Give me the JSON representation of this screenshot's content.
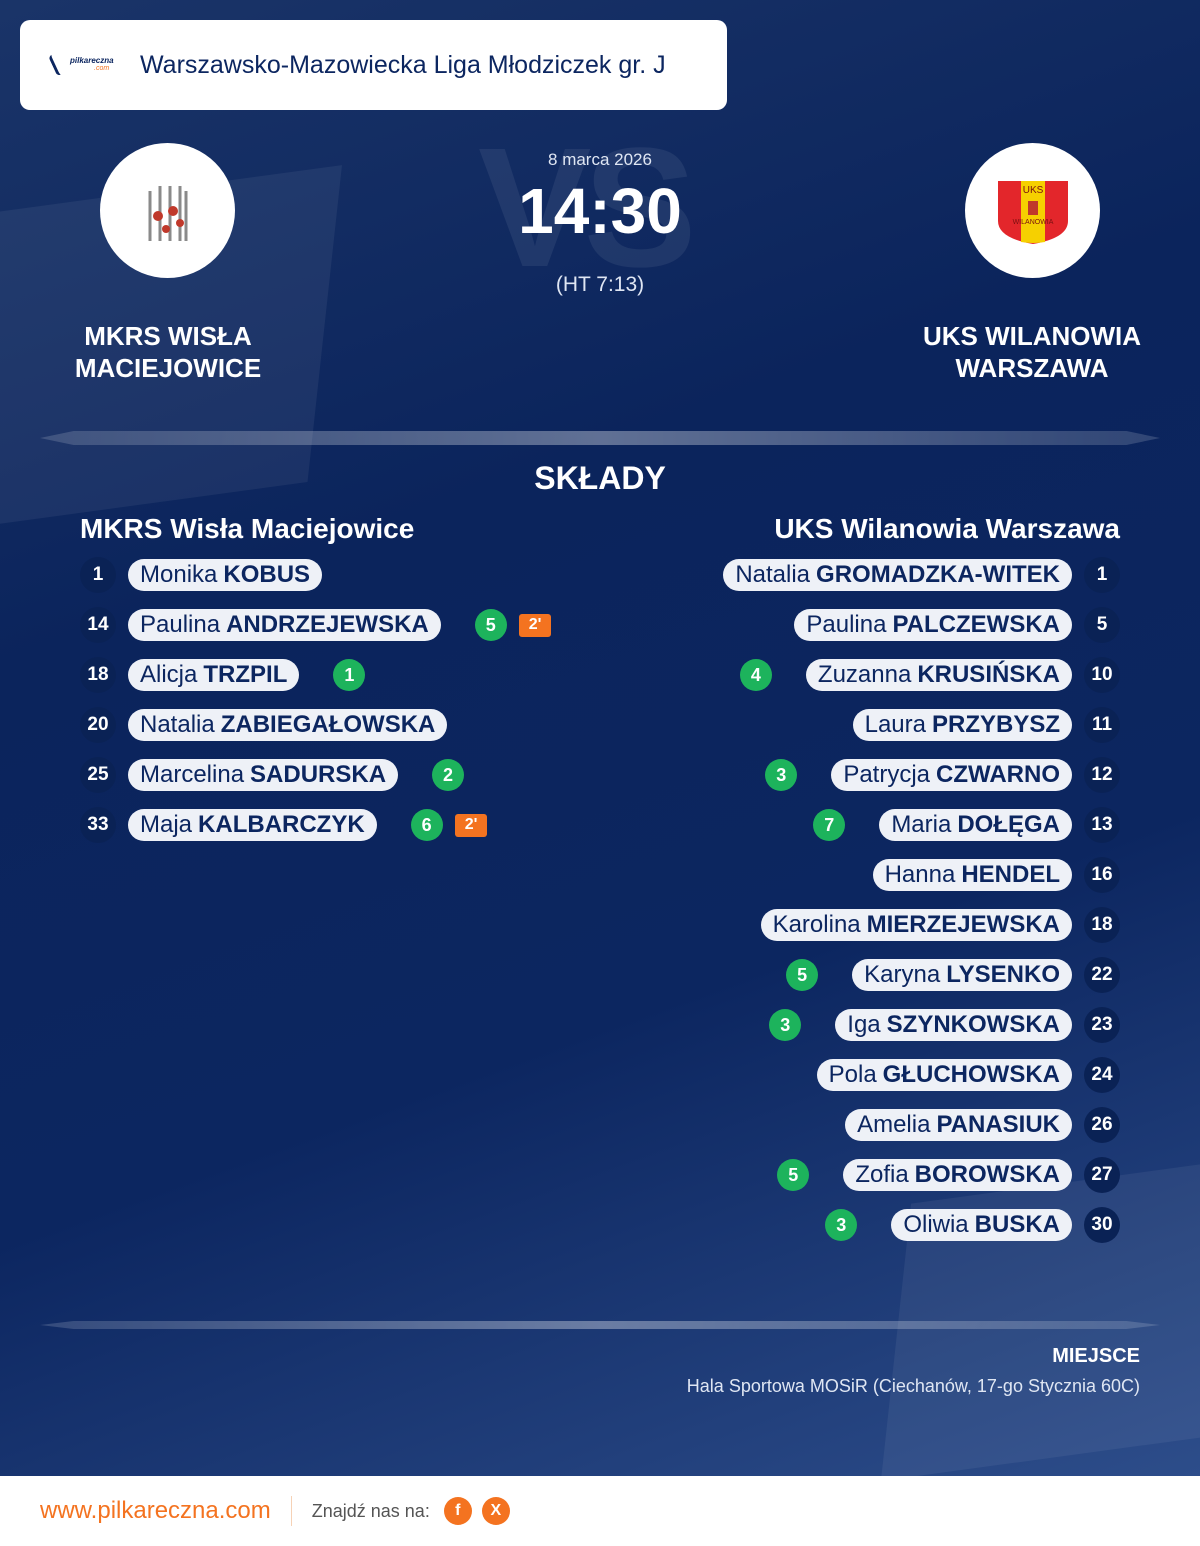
{
  "header": {
    "league": "Warszawsko-Mazowiecka Liga Młodziczek gr. J",
    "logo_text": "pilkareczna",
    "logo_sub": ".com"
  },
  "match": {
    "vs": "VS",
    "date": "8 marca 2026",
    "time": "14:30",
    "halftime": "(HT 7:13)"
  },
  "home": {
    "name_upper": "MKRS WISŁA MACIEJOWICE",
    "name": "MKRS Wisła Maciejowice",
    "players": [
      {
        "number": "1",
        "first": "Monika",
        "last": "KOBUS",
        "goals": null,
        "penalty": null
      },
      {
        "number": "14",
        "first": "Paulina",
        "last": "ANDRZEJEWSKA",
        "goals": "5",
        "penalty": "2'"
      },
      {
        "number": "18",
        "first": "Alicja",
        "last": "TRZPIL",
        "goals": "1",
        "penalty": null
      },
      {
        "number": "20",
        "first": "Natalia",
        "last": "ZABIEGAŁOWSKA",
        "goals": null,
        "penalty": null
      },
      {
        "number": "25",
        "first": "Marcelina",
        "last": "SADURSKA",
        "goals": "2",
        "penalty": null
      },
      {
        "number": "33",
        "first": "Maja",
        "last": "KALBARCZYK",
        "goals": "6",
        "penalty": "2'"
      }
    ]
  },
  "away": {
    "name_upper": "UKS WILANOWIA WARSZAWA",
    "name": "UKS Wilanowia Warszawa",
    "crest_text": "UKS",
    "crest_sub": "WILANOWIA",
    "players": [
      {
        "number": "1",
        "first": "Natalia",
        "last": "GROMADZKA-WITEK",
        "goals": null
      },
      {
        "number": "5",
        "first": "Paulina",
        "last": "PALCZEWSKA",
        "goals": null
      },
      {
        "number": "10",
        "first": "Zuzanna",
        "last": "KRUSIŃSKA",
        "goals": "4"
      },
      {
        "number": "11",
        "first": "Laura",
        "last": "PRZYBYSZ",
        "goals": null
      },
      {
        "number": "12",
        "first": "Patrycja",
        "last": "CZWARNO",
        "goals": "3"
      },
      {
        "number": "13",
        "first": "Maria",
        "last": "DOŁĘGA",
        "goals": "7"
      },
      {
        "number": "16",
        "first": "Hanna",
        "last": "HENDEL",
        "goals": null
      },
      {
        "number": "18",
        "first": "Karolina",
        "last": "MIERZEJEWSKA",
        "goals": null
      },
      {
        "number": "22",
        "first": "Karyna",
        "last": "LYSENKO",
        "goals": "5"
      },
      {
        "number": "23",
        "first": "Iga",
        "last": "SZYNKOWSKA",
        "goals": "3"
      },
      {
        "number": "24",
        "first": "Pola",
        "last": "GŁUCHOWSKA",
        "goals": null
      },
      {
        "number": "26",
        "first": "Amelia",
        "last": "PANASIUK",
        "goals": null
      },
      {
        "number": "27",
        "first": "Zofia",
        "last": "BOROWSKA",
        "goals": "5"
      },
      {
        "number": "30",
        "first": "Oliwia",
        "last": "BUSKA",
        "goals": "3"
      }
    ]
  },
  "lineups_title": "SKŁADY",
  "venue": {
    "label": "MIEJSCE",
    "value": "Hala Sportowa MOSiR (Ciechanów, 17-go Stycznia 60C)"
  },
  "footer": {
    "site": "www.pilkareczna.com",
    "find_us": "Znajdź nas na:",
    "facebook": "f",
    "x": "X"
  },
  "colors": {
    "navy": "#0c2660",
    "goal": "#1db35c",
    "accent": "#f47320"
  }
}
